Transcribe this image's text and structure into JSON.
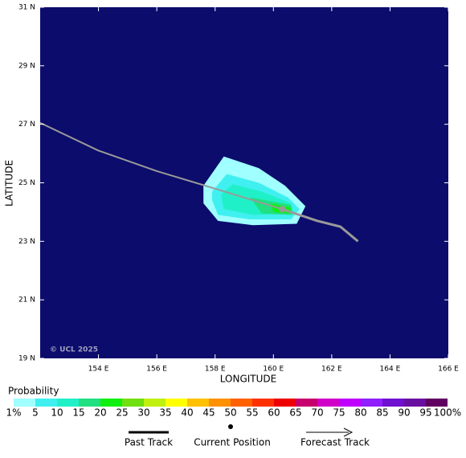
{
  "chart_data": {
    "type": "track_map",
    "xlabel": "LONGITUDE",
    "ylabel": "LATITUDE",
    "xlim": [
      152,
      166
    ],
    "ylim": [
      19,
      31
    ],
    "xticks": [
      {
        "value": 154,
        "label": "154 E"
      },
      {
        "value": 156,
        "label": "156 E"
      },
      {
        "value": 158,
        "label": "158 E"
      },
      {
        "value": 160,
        "label": "160 E"
      },
      {
        "value": 162,
        "label": "162 E"
      },
      {
        "value": 164,
        "label": "164 E"
      },
      {
        "value": 166,
        "label": "166 E"
      }
    ],
    "yticks": [
      {
        "value": 19,
        "label": "19 N"
      },
      {
        "value": 21,
        "label": "21 N"
      },
      {
        "value": 23,
        "label": "23 N"
      },
      {
        "value": 25,
        "label": "25 N"
      },
      {
        "value": 27,
        "label": "27 N"
      },
      {
        "value": 29,
        "label": "29 N"
      },
      {
        "value": 31,
        "label": "31 N"
      }
    ],
    "background": "#0c0c6c",
    "watermark": "© UCL 2025",
    "probability_regions": [
      {
        "level": 1,
        "color": "#a0ffff",
        "lon": [
          157.6,
          158.3,
          159.5,
          160.4,
          161.1,
          160.8,
          159.3,
          158.1,
          157.6
        ],
        "lat": [
          24.9,
          25.9,
          25.5,
          24.9,
          24.2,
          23.6,
          23.55,
          23.7,
          24.3
        ]
      },
      {
        "level": 5,
        "color": "#40f0f0",
        "lon": [
          157.9,
          158.4,
          159.5,
          160.5,
          160.9,
          160.6,
          159.2,
          158.1,
          157.9
        ],
        "lat": [
          24.7,
          25.3,
          25.0,
          24.5,
          24.1,
          23.75,
          23.75,
          23.9,
          24.4
        ]
      },
      {
        "level": 10,
        "color": "#20f0c8",
        "lon": [
          158.2,
          158.6,
          159.6,
          160.6,
          160.7,
          159.3,
          158.3
        ],
        "lat": [
          24.6,
          24.95,
          24.7,
          24.3,
          23.95,
          23.9,
          24.1
        ]
      },
      {
        "level": 15,
        "color": "#20e080",
        "lon": [
          159.2,
          160.6,
          160.65,
          159.6
        ],
        "lat": [
          24.5,
          24.25,
          23.9,
          23.95
        ]
      },
      {
        "level": 20,
        "color": "#10f010",
        "lon": [
          159.9,
          160.6,
          160.6,
          160.0
        ],
        "lat": [
          24.3,
          24.15,
          23.95,
          24.0
        ]
      }
    ],
    "past_track": {
      "color": "#9a9a9a",
      "lon": [
        152,
        154,
        156,
        158,
        160.3
      ],
      "lat": [
        27.05,
        26.1,
        25.4,
        24.8,
        24.1
      ]
    },
    "forecast_track": {
      "color": "#9a9a9a",
      "lon": [
        160.3,
        161.5,
        162.3,
        162.9
      ],
      "lat": [
        24.1,
        23.7,
        23.5,
        23.0
      ]
    },
    "current_position": {
      "lon": 160.3,
      "lat": 24.1
    },
    "colorbar": {
      "title": "Probability",
      "levels": [
        {
          "value": 1,
          "label": "1%"
        },
        5,
        10,
        15,
        20,
        25,
        30,
        35,
        40,
        45,
        50,
        55,
        60,
        65,
        70,
        75,
        80,
        85,
        90,
        95,
        {
          "value": 100,
          "label": "100%"
        }
      ],
      "colors": [
        "#a0ffff",
        "#40f0f0",
        "#20f0c8",
        "#20e080",
        "#10f010",
        "#70e010",
        "#c0f010",
        "#ffff00",
        "#ffc000",
        "#ff9000",
        "#ff6000",
        "#ff3000",
        "#ee0000",
        "#c8006e",
        "#d000c8",
        "#c000ff",
        "#9020ff",
        "#7010d0",
        "#6a10a0",
        "#600060"
      ]
    },
    "key": [
      "Past Track",
      "Current Position",
      "Forecast Track"
    ]
  }
}
